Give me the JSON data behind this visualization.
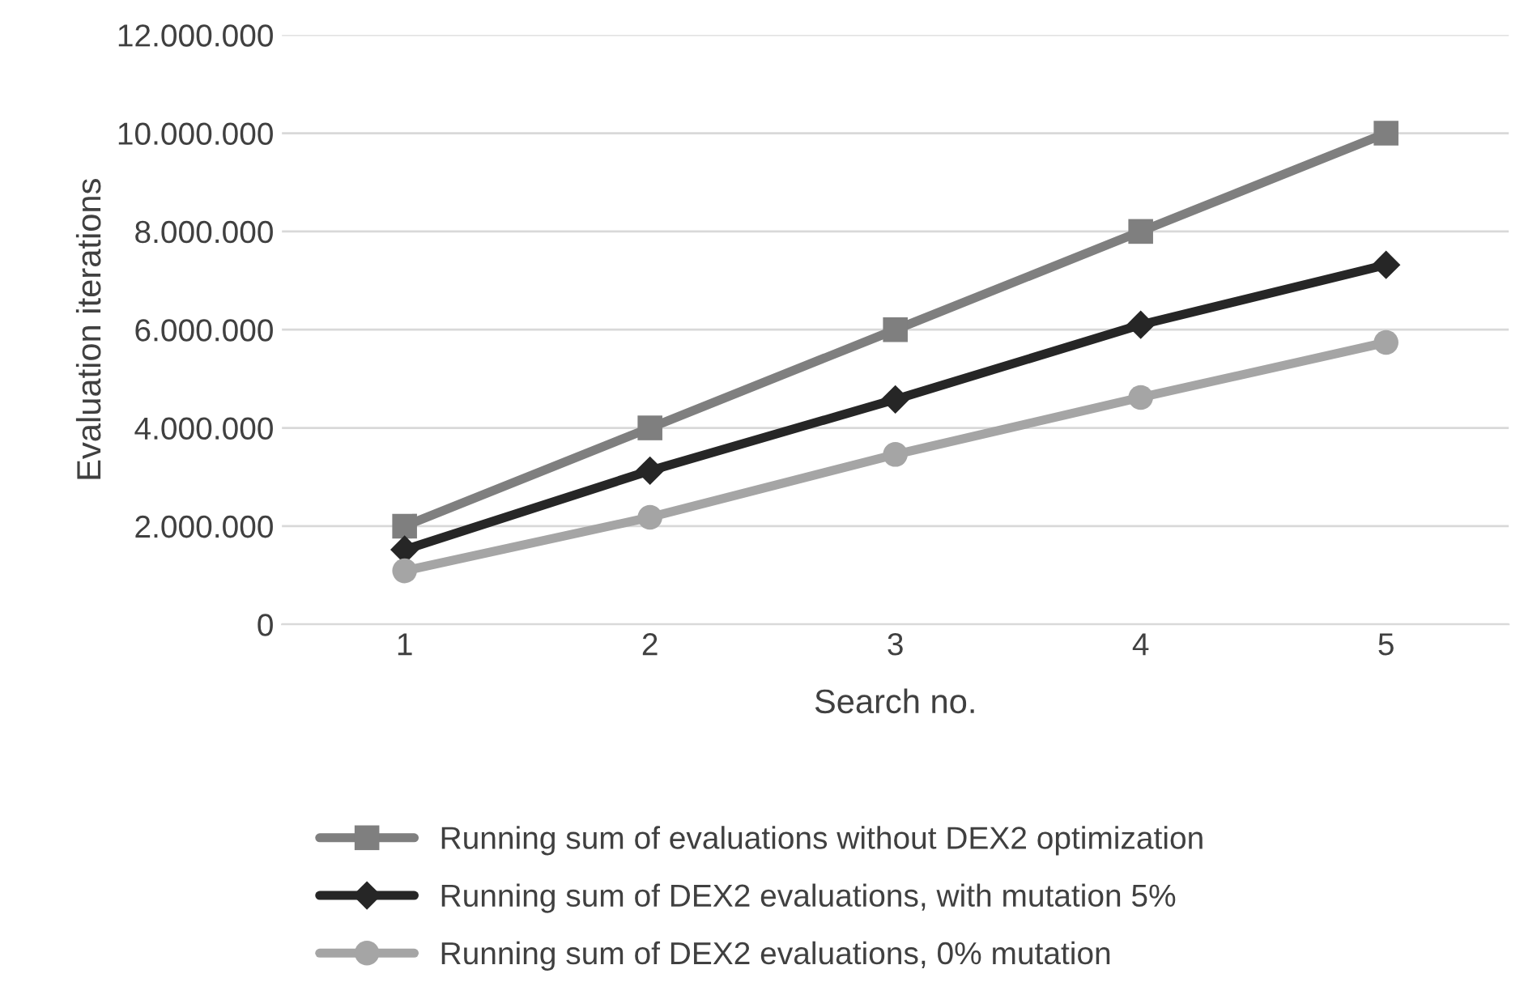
{
  "chart_data": {
    "type": "line",
    "xlabel": "Search no.",
    "ylabel": "Evaluation iterations",
    "categories": [
      "1",
      "2",
      "3",
      "4",
      "5"
    ],
    "series": [
      {
        "name": "Running sum of evaluations without DEX2 optimization",
        "color": "#7f7f7f",
        "marker": "square",
        "values": [
          2000000,
          4000000,
          6000000,
          8000000,
          10000000
        ]
      },
      {
        "name": "Running sum of DEX2 evaluations, with mutation 5%",
        "color": "#262626",
        "marker": "diamond",
        "values": [
          1520000,
          3130000,
          4580000,
          6100000,
          7320000
        ]
      },
      {
        "name": "Running sum of DEX2 evaluations, 0% mutation",
        "color": "#a5a5a5",
        "marker": "circle",
        "values": [
          1090000,
          2180000,
          3460000,
          4620000,
          5740000
        ]
      }
    ],
    "ylim": [
      0,
      12000000
    ],
    "yticks": [
      0,
      {
        "value": 2000000,
        "label": "2.000.000"
      },
      {
        "value": 4000000,
        "label": "4.000.000"
      },
      {
        "value": 6000000,
        "label": "6.000.000"
      },
      {
        "value": 8000000,
        "label": "8.000.000"
      },
      {
        "value": 10000000,
        "label": "10.000.000"
      },
      {
        "value": 12000000,
        "label": "12.000.000"
      }
    ],
    "grid": "y",
    "legend": "bottom",
    "line_style": "solid"
  }
}
